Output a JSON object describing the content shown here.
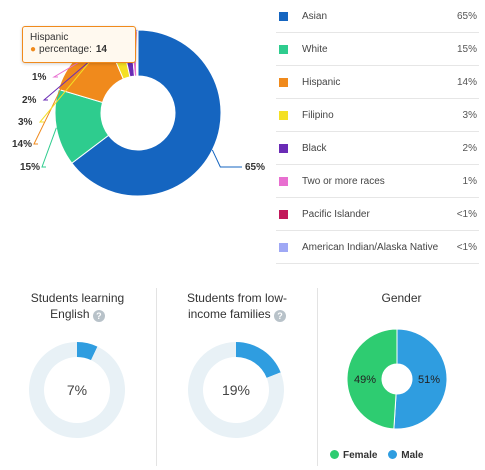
{
  "chart_data": [
    {
      "type": "pie",
      "categories": [
        "Asian",
        "White",
        "Hispanic",
        "Filipino",
        "Black",
        "Two or more races",
        "Pacific Islander",
        "American Indian/Alaska Native"
      ],
      "values": [
        65,
        15,
        14,
        3,
        2,
        1,
        0.3,
        0.2
      ],
      "value_labels": [
        "65%",
        "15%",
        "14%",
        "3%",
        "2%",
        "1%",
        "<1%",
        "<1%"
      ],
      "colors": [
        "#1565c0",
        "#2ecc8e",
        "#f08a1c",
        "#f4e025",
        "#6a2bb5",
        "#e86fd0",
        "#c2185b",
        "#9fa8f5"
      ],
      "legend": [
        {
          "label": "Asian",
          "value": "65%",
          "color": "#1565c0"
        },
        {
          "label": "White",
          "value": "15%",
          "color": "#2ecc8e"
        },
        {
          "label": "Hispanic",
          "value": "14%",
          "color": "#f08a1c"
        },
        {
          "label": "Filipino",
          "value": "3%",
          "color": "#f4e025"
        },
        {
          "label": "Black",
          "value": "2%",
          "color": "#6a2bb5"
        },
        {
          "label": "Two or more races",
          "value": "1%",
          "color": "#e86fd0"
        },
        {
          "label": "Pacific Islander",
          "value": "<1%",
          "color": "#c2185b"
        },
        {
          "label": "American Indian/Alaska Native",
          "value": "<1%",
          "color": "#9fa8f5"
        }
      ],
      "tooltip": {
        "category": "Hispanic",
        "series_label": "percentage:",
        "value": "14"
      }
    },
    {
      "type": "pie",
      "title_lines": [
        "Students learning",
        "English"
      ],
      "values": [
        7,
        93
      ],
      "center_label": "7%",
      "colors": [
        "#2f9de0",
        "#e8f1f6"
      ]
    },
    {
      "type": "pie",
      "title_lines": [
        "Students from low-",
        "income families"
      ],
      "values": [
        19,
        81
      ],
      "center_label": "19%",
      "colors": [
        "#2f9de0",
        "#e8f1f6"
      ]
    },
    {
      "type": "pie",
      "title_lines": [
        "Gender"
      ],
      "categories": [
        "Female",
        "Male"
      ],
      "values": [
        49,
        51
      ],
      "value_labels": [
        "49%",
        "51%"
      ],
      "colors": [
        "#2ecc71",
        "#2f9de0"
      ]
    }
  ],
  "help_icon": "question-icon"
}
